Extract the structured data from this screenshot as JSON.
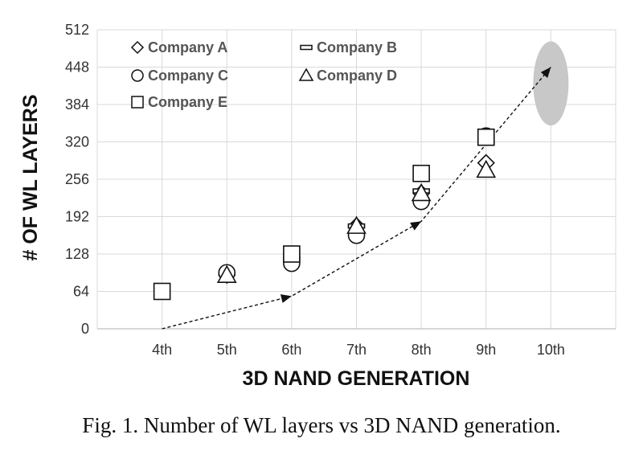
{
  "caption": "Fig. 1. Number of WL layers vs 3D NAND generation.",
  "chart_data": {
    "type": "scatter",
    "xlabel": "3D NAND GENERATION",
    "ylabel": "# OF WL LAYERS",
    "categories": [
      "4th",
      "5th",
      "6th",
      "7th",
      "8th",
      "9th",
      "10th"
    ],
    "ylim": [
      0,
      512
    ],
    "yticks": [
      0,
      64,
      128,
      192,
      256,
      320,
      384,
      448,
      512
    ],
    "grid": "horizontal-and-vertical",
    "legend_position": "top-left",
    "series": [
      {
        "name": "Company A",
        "marker": "diamond",
        "points": [
          {
            "x": "5th",
            "y": 92
          },
          {
            "x": "6th",
            "y": 128
          },
          {
            "x": "7th",
            "y": 176
          },
          {
            "x": "8th",
            "y": 232
          },
          {
            "x": "9th",
            "y": 284
          }
        ]
      },
      {
        "name": "Company B",
        "marker": "bar",
        "points": [
          {
            "x": "6th",
            "y": 120
          },
          {
            "x": "7th",
            "y": 176
          },
          {
            "x": "8th",
            "y": 236
          },
          {
            "x": "9th",
            "y": 320
          }
        ]
      },
      {
        "name": "Company C",
        "marker": "circle",
        "points": [
          {
            "x": "5th",
            "y": 96
          },
          {
            "x": "6th",
            "y": 112
          },
          {
            "x": "7th",
            "y": 160
          },
          {
            "x": "8th",
            "y": 218
          },
          {
            "x": "9th",
            "y": 330
          }
        ]
      },
      {
        "name": "Company D",
        "marker": "triangle",
        "points": [
          {
            "x": "5th",
            "y": 92
          },
          {
            "x": "7th",
            "y": 176
          },
          {
            "x": "8th",
            "y": 232
          },
          {
            "x": "9th",
            "y": 272
          }
        ]
      },
      {
        "name": "Company E",
        "marker": "square",
        "points": [
          {
            "x": "4th",
            "y": 64
          },
          {
            "x": "6th",
            "y": 128
          },
          {
            "x": "8th",
            "y": 266
          },
          {
            "x": "9th",
            "y": 328
          }
        ]
      }
    ],
    "trend": {
      "style": "dashed-arrow",
      "points": [
        {
          "x": "4th",
          "y": 0
        },
        {
          "x": "6th",
          "y": 56
        },
        {
          "x": "8th",
          "y": 184
        },
        {
          "x": "10th",
          "y": 448
        }
      ]
    },
    "highlight": {
      "shape": "ellipse",
      "color": "#c8c8c8",
      "x": "10th",
      "y_center": 420,
      "y_half_height": 72
    }
  }
}
